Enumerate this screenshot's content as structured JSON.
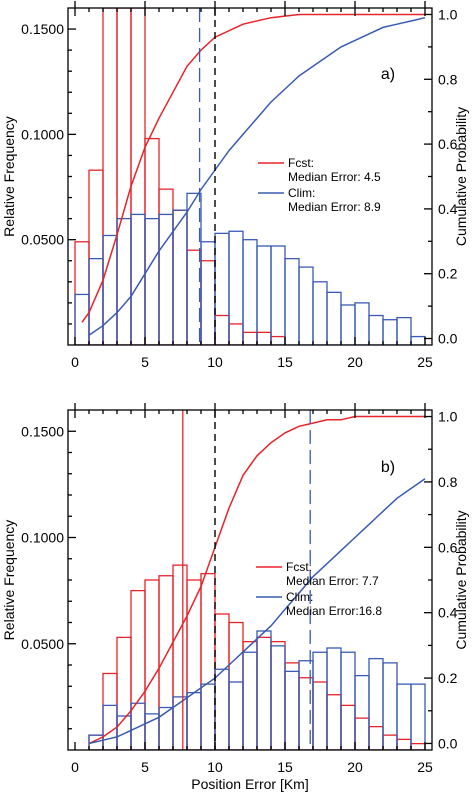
{
  "colors": {
    "fcst": "#e8232a",
    "clim": "#3a5bb4",
    "threshold": "#000000"
  },
  "chart_data": [
    {
      "panel": "a)",
      "type": "bar",
      "xlabel": "",
      "ylabel": "Relative Frequency",
      "y2label": "Cumulative Probability",
      "xlim": [
        -0.5,
        25.5
      ],
      "ylim": [
        0,
        0.16
      ],
      "y2lim": [
        -0.02,
        1.02
      ],
      "xticks": [
        "0",
        "5",
        "10",
        "15",
        "20",
        "25"
      ],
      "yticks": [
        "0.0500",
        "0.1000",
        "0.1500"
      ],
      "y2ticks": [
        "0.0",
        "0.2",
        "0.4",
        "0.6",
        "0.8",
        "1.0"
      ],
      "bin_width": 1,
      "threshold": 10,
      "legend_position": "right-middle",
      "series": [
        {
          "name": "Fcst",
          "legend_lines": [
            "Fcst:",
            "Median Error: 4.5"
          ],
          "median": 4.5,
          "bin_start": 0,
          "values": [
            0.049,
            0.083,
            0.16,
            0.16,
            0.16,
            0.098,
            0.074,
            0.064,
            0.045,
            0.04,
            0.014,
            0.01,
            0.006,
            0.006,
            0.004,
            0.0,
            0.0,
            0.0,
            0.0,
            0.0,
            0.0,
            0.0,
            0.0,
            0.0,
            0.0
          ],
          "cumulative": {
            "x": [
              0.5,
              1,
              2,
              3,
              4,
              5,
              6,
              7,
              8,
              9,
              10,
              12,
              14,
              16,
              18,
              20,
              22,
              24,
              25
            ],
            "y": [
              0.05,
              0.08,
              0.18,
              0.32,
              0.47,
              0.59,
              0.68,
              0.76,
              0.84,
              0.89,
              0.93,
              0.97,
              0.99,
              1.0,
              1.0,
              1.0,
              1.0,
              1.0,
              1.0
            ]
          }
        },
        {
          "name": "Clim",
          "legend_lines": [
            "Clim:",
            "Median Error: 8.9"
          ],
          "median": 8.9,
          "bin_start": 0,
          "values": [
            0.024,
            0.041,
            0.052,
            0.06,
            0.062,
            0.06,
            0.062,
            0.064,
            0.072,
            0.049,
            0.053,
            0.054,
            0.05,
            0.047,
            0.047,
            0.041,
            0.037,
            0.03,
            0.025,
            0.019,
            0.02,
            0.014,
            0.012,
            0.013,
            0.004
          ],
          "cumulative": {
            "x": [
              1,
              2,
              3,
              4,
              5,
              6,
              7,
              8,
              9,
              10,
              11,
              12,
              13,
              14,
              15,
              16,
              17,
              18,
              19,
              20,
              21,
              22,
              23,
              24,
              25
            ],
            "y": [
              0.01,
              0.04,
              0.08,
              0.13,
              0.2,
              0.27,
              0.33,
              0.39,
              0.46,
              0.52,
              0.58,
              0.63,
              0.68,
              0.73,
              0.77,
              0.81,
              0.84,
              0.87,
              0.9,
              0.92,
              0.94,
              0.96,
              0.97,
              0.98,
              0.99
            ]
          }
        }
      ]
    },
    {
      "panel": "b)",
      "type": "bar",
      "xlabel": "Position Error [Km]",
      "ylabel": "Relative Frequency",
      "y2label": "Cumulative Probability",
      "xlim": [
        -0.5,
        25.5
      ],
      "ylim": [
        0,
        0.16
      ],
      "y2lim": [
        -0.02,
        1.02
      ],
      "xticks": [
        "0",
        "5",
        "10",
        "15",
        "20",
        "25"
      ],
      "yticks": [
        "0.0500",
        "0.1000",
        "0.1500"
      ],
      "y2ticks": [
        "0.0",
        "0.2",
        "0.4",
        "0.6",
        "0.8",
        "1.0"
      ],
      "bin_width": 1,
      "threshold": 10,
      "legend_position": "right-middle",
      "series": [
        {
          "name": "Fcst",
          "legend_lines": [
            "Fcst:",
            "Median Error: 7.7"
          ],
          "median": 7.7,
          "bin_start": 1,
          "values": [
            0.007,
            0.036,
            0.053,
            0.075,
            0.08,
            0.082,
            0.087,
            0.08,
            0.083,
            0.064,
            0.06,
            0.051,
            0.053,
            0.051,
            0.041,
            0.034,
            0.032,
            0.026,
            0.021,
            0.015,
            0.011,
            0.007,
            0.005,
            0.003
          ],
          "cumulative": {
            "x": [
              1,
              2,
              3,
              4,
              5,
              6,
              7,
              8,
              9,
              10,
              11,
              12,
              13,
              14,
              15,
              16,
              17,
              18,
              19,
              20,
              21,
              22,
              23,
              24,
              25
            ],
            "y": [
              0.0,
              0.02,
              0.05,
              0.1,
              0.16,
              0.23,
              0.31,
              0.39,
              0.48,
              0.6,
              0.72,
              0.82,
              0.88,
              0.92,
              0.95,
              0.97,
              0.98,
              0.99,
              0.99,
              1.0,
              1.0,
              1.0,
              1.0,
              1.0,
              1.0
            ]
          }
        },
        {
          "name": "Clim",
          "legend_lines": [
            "Clim:",
            "Median Error:16.8"
          ],
          "median": 16.8,
          "bin_start": 1,
          "values": [
            0.007,
            0.021,
            0.016,
            0.022,
            0.017,
            0.02,
            0.025,
            0.027,
            0.031,
            0.038,
            0.032,
            0.046,
            0.056,
            0.049,
            0.037,
            0.042,
            0.046,
            0.048,
            0.046,
            0.035,
            0.043,
            0.041,
            0.031,
            0.031
          ],
          "cumulative": {
            "x": [
              1,
              2,
              3,
              4,
              5,
              6,
              7,
              8,
              9,
              10,
              11,
              12,
              13,
              14,
              15,
              16,
              17,
              18,
              19,
              20,
              21,
              22,
              23,
              24,
              25
            ],
            "y": [
              0.0,
              0.01,
              0.02,
              0.04,
              0.06,
              0.08,
              0.11,
              0.14,
              0.17,
              0.2,
              0.24,
              0.28,
              0.32,
              0.36,
              0.41,
              0.46,
              0.51,
              0.55,
              0.59,
              0.63,
              0.67,
              0.71,
              0.75,
              0.78,
              0.81
            ]
          }
        }
      ]
    }
  ]
}
